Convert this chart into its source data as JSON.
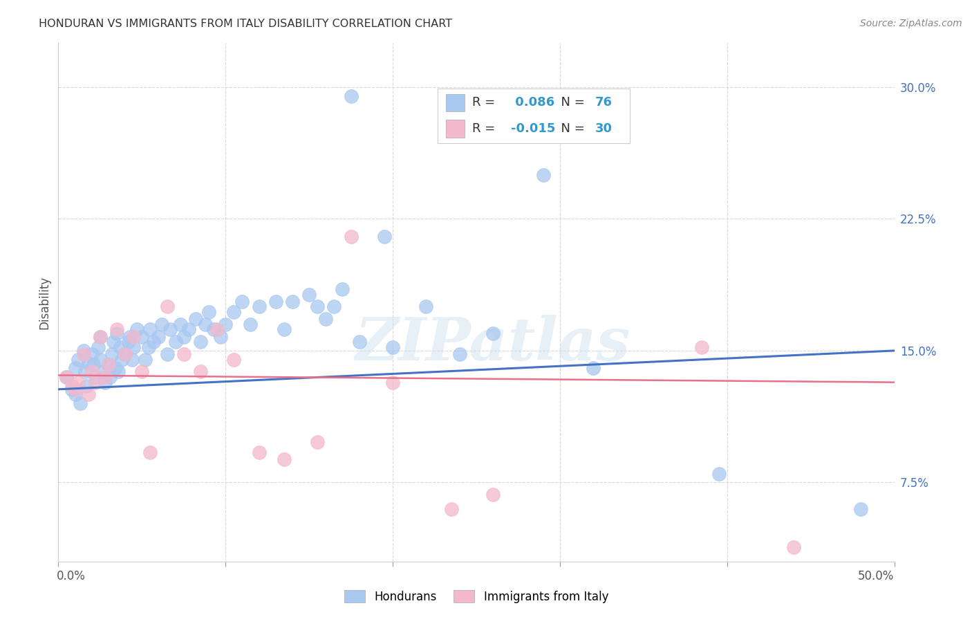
{
  "title": "HONDURAN VS IMMIGRANTS FROM ITALY DISABILITY CORRELATION CHART",
  "source": "Source: ZipAtlas.com",
  "ylabel": "Disability",
  "watermark": "ZIPatlas",
  "xlim": [
    0.0,
    0.5
  ],
  "ylim": [
    0.03,
    0.325
  ],
  "yticks": [
    0.075,
    0.15,
    0.225,
    0.3
  ],
  "ytick_labels": [
    "7.5%",
    "15.0%",
    "22.5%",
    "30.0%"
  ],
  "xticks": [
    0.0,
    0.1,
    0.2,
    0.3,
    0.4,
    0.5
  ],
  "blue_R": 0.086,
  "blue_N": 76,
  "pink_R": -0.015,
  "pink_N": 30,
  "blue_color": "#A8C8F0",
  "pink_color": "#F4B8CC",
  "blue_line_color": "#4472C4",
  "pink_line_color": "#E8708A",
  "background_color": "#FFFFFF",
  "grid_color": "#D8D8D8",
  "legend_label_blue": "Hondurans",
  "legend_label_pink": "Immigrants from Italy",
  "blue_intercept": 0.128,
  "blue_slope": 0.044,
  "pink_intercept": 0.136,
  "pink_slope": -0.008,
  "blue_points_x": [
    0.005,
    0.008,
    0.01,
    0.01,
    0.012,
    0.013,
    0.015,
    0.016,
    0.017,
    0.018,
    0.02,
    0.021,
    0.022,
    0.024,
    0.025,
    0.025,
    0.027,
    0.028,
    0.03,
    0.031,
    0.032,
    0.033,
    0.034,
    0.035,
    0.036,
    0.037,
    0.038,
    0.04,
    0.042,
    0.043,
    0.044,
    0.045,
    0.047,
    0.05,
    0.052,
    0.054,
    0.055,
    0.057,
    0.06,
    0.062,
    0.065,
    0.067,
    0.07,
    0.073,
    0.075,
    0.078,
    0.082,
    0.085,
    0.088,
    0.09,
    0.093,
    0.097,
    0.1,
    0.105,
    0.11,
    0.115,
    0.12,
    0.13,
    0.135,
    0.14,
    0.15,
    0.155,
    0.16,
    0.165,
    0.17,
    0.175,
    0.18,
    0.195,
    0.2,
    0.22,
    0.24,
    0.26,
    0.29,
    0.32,
    0.395,
    0.48
  ],
  "blue_points_y": [
    0.135,
    0.128,
    0.14,
    0.125,
    0.145,
    0.12,
    0.15,
    0.138,
    0.13,
    0.143,
    0.148,
    0.142,
    0.135,
    0.152,
    0.158,
    0.145,
    0.138,
    0.132,
    0.142,
    0.135,
    0.148,
    0.155,
    0.14,
    0.16,
    0.138,
    0.152,
    0.145,
    0.148,
    0.155,
    0.158,
    0.145,
    0.152,
    0.162,
    0.158,
    0.145,
    0.152,
    0.162,
    0.155,
    0.158,
    0.165,
    0.148,
    0.162,
    0.155,
    0.165,
    0.158,
    0.162,
    0.168,
    0.155,
    0.165,
    0.172,
    0.162,
    0.158,
    0.165,
    0.172,
    0.178,
    0.165,
    0.175,
    0.178,
    0.162,
    0.178,
    0.182,
    0.175,
    0.168,
    0.175,
    0.185,
    0.295,
    0.155,
    0.215,
    0.152,
    0.175,
    0.148,
    0.16,
    0.25,
    0.14,
    0.08,
    0.06
  ],
  "pink_points_x": [
    0.005,
    0.008,
    0.01,
    0.012,
    0.015,
    0.018,
    0.02,
    0.022,
    0.025,
    0.028,
    0.03,
    0.035,
    0.04,
    0.045,
    0.05,
    0.055,
    0.065,
    0.075,
    0.085,
    0.095,
    0.105,
    0.12,
    0.135,
    0.155,
    0.175,
    0.2,
    0.235,
    0.26,
    0.385,
    0.44
  ],
  "pink_points_y": [
    0.135,
    0.13,
    0.128,
    0.132,
    0.148,
    0.125,
    0.138,
    0.132,
    0.158,
    0.135,
    0.142,
    0.162,
    0.148,
    0.158,
    0.138,
    0.092,
    0.175,
    0.148,
    0.138,
    0.162,
    0.145,
    0.092,
    0.088,
    0.098,
    0.215,
    0.132,
    0.06,
    0.068,
    0.152,
    0.038
  ]
}
